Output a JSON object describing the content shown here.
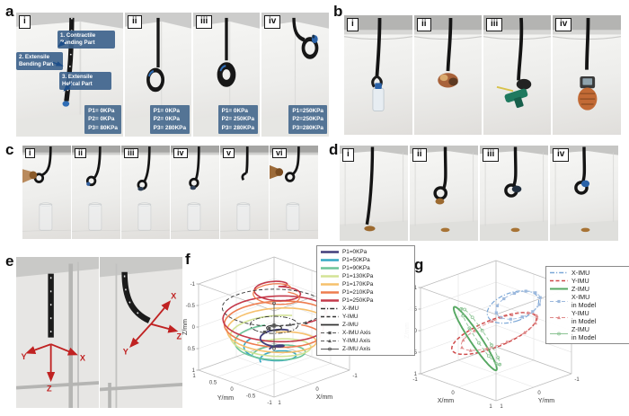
{
  "panels": {
    "a": {
      "letter": "a",
      "items": [
        "i",
        "ii",
        "iii",
        "iv"
      ],
      "callouts": [
        "1. Contractile Bending Part",
        "2. Extensile Bending Part",
        "3. Extensile Helical Part"
      ],
      "pressures": [
        [
          "P1= 0KPa",
          "P2= 0KPa",
          "P3= 80KPa"
        ],
        [
          "P1= 0KPa",
          "P2= 0KPa",
          "P3= 280KPa"
        ],
        [
          "P1= 0KPa",
          "P2= 250KPa",
          "P3= 280KPa"
        ],
        [
          "P1=250KPa",
          "P2=250KPa",
          "P3=280KPa"
        ]
      ]
    },
    "b": {
      "letter": "b",
      "items": [
        "i",
        "ii",
        "iii",
        "iv"
      ]
    },
    "c": {
      "letter": "c",
      "items": [
        "i",
        "ii",
        "iii",
        "iv",
        "v",
        "vi"
      ]
    },
    "d": {
      "letter": "d",
      "items": [
        "i",
        "ii",
        "iii",
        "iv"
      ]
    },
    "e": {
      "letter": "e",
      "left_axes": {
        "y": "Y",
        "x": "X",
        "z": "Z"
      },
      "right_axes": {
        "x": "X",
        "z": "Z",
        "y": "Y"
      }
    },
    "f": {
      "letter": "f"
    },
    "g": {
      "letter": "g"
    }
  },
  "chart_data": [
    {
      "id": "f",
      "type": "line",
      "projection": "3d",
      "axes": {
        "x": {
          "label": "X/mm",
          "ticks": [
            1,
            0,
            -1
          ],
          "range": [
            -1,
            1
          ]
        },
        "y": {
          "label": "Y/mm",
          "ticks": [
            1,
            0.5,
            0,
            -0.5,
            -1
          ],
          "range": [
            -1,
            1
          ]
        },
        "z": {
          "label": "Z/mm",
          "ticks": [
            -1,
            -0.5,
            0,
            0.5,
            1
          ],
          "range": [
            -1,
            1
          ],
          "reversed": true
        }
      },
      "legend": [
        {
          "label": "P1=0KPa",
          "color": "#413d7b",
          "style": "solid",
          "marker": "none",
          "w": 2.4
        },
        {
          "label": "P1=50KPa",
          "color": "#35a8c4",
          "style": "solid",
          "marker": "none",
          "w": 2.4
        },
        {
          "label": "P1=90KPa",
          "color": "#6cc498",
          "style": "solid",
          "marker": "none",
          "w": 2.4
        },
        {
          "label": "P1=130KPa",
          "color": "#d3e396",
          "style": "solid",
          "marker": "none",
          "w": 2.4
        },
        {
          "label": "P1=170KPa",
          "color": "#f6c06c",
          "style": "solid",
          "marker": "none",
          "w": 2.4
        },
        {
          "label": "P1=210KPa",
          "color": "#ee7d4f",
          "style": "solid",
          "marker": "none",
          "w": 2.4
        },
        {
          "label": "P1=250KPa",
          "color": "#c43a4b",
          "style": "solid",
          "marker": "none",
          "w": 2.4
        },
        {
          "label": "X-IMU",
          "color": "#333333",
          "style": "dashdot",
          "marker": "none",
          "w": 1.4
        },
        {
          "label": "Y-IMU",
          "color": "#333333",
          "style": "dash",
          "marker": "none",
          "w": 1.4
        },
        {
          "label": "Z-IMU",
          "color": "#333333",
          "style": "solid",
          "marker": "none",
          "w": 1.8
        },
        {
          "label": "X-IMU Axis",
          "color": "#555555",
          "style": "dash",
          "marker": "square",
          "w": 1
        },
        {
          "label": "Y-IMU Axis",
          "color": "#555555",
          "style": "dash",
          "marker": "triangle",
          "w": 1
        },
        {
          "label": "Z-IMU Axis",
          "color": "#555555",
          "style": "solid",
          "marker": "circle",
          "w": 1
        }
      ],
      "view": {
        "origin": [
          100,
          84
        ],
        "ux": [
          -42,
          15
        ],
        "uy": [
          -42,
          -15
        ],
        "uz": [
          0,
          48
        ],
        "front": [
          1,
          -1
        ],
        "zedge": [
          1,
          1
        ],
        "x_y": -1,
        "y_x": 1,
        "xoff": [
          6,
          8
        ],
        "yoff": [
          -5,
          8
        ],
        "labels": {
          "x": {
            "pos": [
              0,
              -1,
              1
            ],
            "off": [
              14,
              17
            ]
          },
          "y": {
            "pos": [
              1,
              0,
              1
            ],
            "off": [
              -12,
              18
            ]
          },
          "z": {
            "pos": [
              1,
              1,
              0
            ],
            "off": [
              -13,
              0
            ],
            "rot": -90
          }
        }
      },
      "series": [
        {
          "type": "spiral",
          "r0": 0.25,
          "r1": 0.6,
          "z0": 0.8,
          "z1": 0.45,
          "turns": 1.15,
          "phase": 0.6,
          "color": "#35a8c4",
          "w": 1.6
        },
        {
          "type": "spiral",
          "r0": 0.45,
          "r1": 0.8,
          "z0": 0.72,
          "z1": 0.3,
          "turns": 1.15,
          "phase": 1.2,
          "color": "#6cc498",
          "w": 1.6
        },
        {
          "type": "spiral",
          "r0": 0.6,
          "r1": 0.9,
          "z0": 0.6,
          "z1": 0.1,
          "turns": 1.15,
          "phase": 1.8,
          "color": "#d3e396",
          "w": 1.6
        },
        {
          "type": "spiral",
          "r0": 0.75,
          "r1": 0.95,
          "z0": 0.45,
          "z1": -0.1,
          "turns": 1.15,
          "phase": 2.4,
          "color": "#f6c06c",
          "w": 1.6
        },
        {
          "type": "spiral",
          "r0": 0.85,
          "r1": 1.0,
          "z0": 0.25,
          "z1": -0.3,
          "turns": 1.18,
          "phase": 3.0,
          "color": "#ee7d4f",
          "w": 1.6
        },
        {
          "type": "spiral",
          "r0": 0.92,
          "r1": 1.0,
          "z0": 0.05,
          "z1": -0.45,
          "turns": 1.22,
          "phase": 3.5,
          "color": "#c43a4b",
          "w": 1.6
        },
        {
          "type": "spiral",
          "r0": 0.12,
          "r1": 0.32,
          "z0": 0.55,
          "z1": 0.15,
          "turns": 1.3,
          "phase": 1.5,
          "color": "#413d7b",
          "w": 1.8
        },
        {
          "type": "spiral",
          "r0": 0.55,
          "r1": 0.2,
          "z0": -0.7,
          "z1": -1.02,
          "turns": 1.4,
          "phase": 2.5,
          "color": "#c43a4b",
          "w": 1.6
        },
        {
          "type": "spiral",
          "r0": 0.5,
          "r1": 0.3,
          "z0": -0.62,
          "z1": -0.92,
          "turns": 1.2,
          "phase": 2.9,
          "color": "#ee7d4f",
          "w": 1.3
        },
        {
          "type": "spiral",
          "r0": 0.97,
          "r1": 0.97,
          "z0": -0.45,
          "z1": -0.45,
          "turns": 1,
          "phase": 0,
          "color": "#333333",
          "style": "dash",
          "w": 0.9
        },
        {
          "type": "spiral",
          "r0": 0.45,
          "r1": 0.45,
          "z0": -0.05,
          "z1": -0.05,
          "turns": 1,
          "phase": 0,
          "color": "#333333",
          "style": "dashdot",
          "w": 0.9
        },
        {
          "type": "spiral",
          "r0": 0.14,
          "r1": 0.14,
          "z0": 0.02,
          "z1": 0.02,
          "turns": 1,
          "phase": 0,
          "color": "#333333",
          "style": "solid",
          "w": 1.1
        },
        {
          "type": "seg",
          "a": [
            0,
            0,
            -0.05
          ],
          "b": [
            0.55,
            -0.3,
            -0.15
          ],
          "color": "#555555",
          "style": "dash",
          "marker": "square",
          "every": 18,
          "w": 0.8
        },
        {
          "type": "seg",
          "a": [
            0,
            0,
            -0.02
          ],
          "b": [
            -0.5,
            -0.35,
            -0.05
          ],
          "color": "#555555",
          "style": "dash",
          "marker": "triangle",
          "every": 18,
          "w": 0.8
        },
        {
          "type": "seg",
          "a": [
            0,
            0,
            0.5
          ],
          "b": [
            0,
            0,
            -0.55
          ],
          "color": "#555555",
          "style": "solid",
          "marker": "circle",
          "every": 18,
          "w": 0.8
        }
      ]
    },
    {
      "id": "g",
      "type": "line",
      "projection": "3d",
      "axes": {
        "x": {
          "label": "X/mm",
          "ticks": [
            -1,
            0,
            1
          ],
          "range": [
            -1,
            1
          ]
        },
        "y": {
          "label": "Y/mm",
          "ticks": [
            1,
            0,
            -1
          ],
          "range": [
            -1,
            1
          ]
        },
        "z": {
          "label": "Z/mm",
          "ticks": [
            -1,
            -0.5,
            0,
            0.5,
            1
          ],
          "range": [
            -1,
            1
          ],
          "reversed": true
        }
      },
      "legend": [
        {
          "label": "X-IMU",
          "color": "#7ba7d7",
          "style": "dashdot",
          "marker": "none",
          "w": 1.4
        },
        {
          "label": "Y-IMU",
          "color": "#cf4a4a",
          "style": "dash",
          "marker": "none",
          "w": 1.6
        },
        {
          "label": "Z-IMU",
          "color": "#57a863",
          "style": "solid",
          "marker": "none",
          "w": 2
        },
        {
          "label": "X-IMU\nin Model",
          "color": "#9db9dd",
          "style": "dash",
          "marker": "square",
          "w": 1
        },
        {
          "label": "Y-IMU\nin Model",
          "color": "#df8a8a",
          "style": "dash",
          "marker": "triangle",
          "w": 1
        },
        {
          "label": "Z-IMU\nin Model",
          "color": "#8cc494",
          "style": "solid",
          "marker": "circle",
          "w": 1
        }
      ],
      "view": {
        "origin": [
          97,
          88
        ],
        "ux": [
          42,
          15
        ],
        "uy": [
          -42,
          15
        ],
        "uz": [
          0,
          48
        ],
        "front": [
          1,
          1
        ],
        "zedge": [
          -1,
          1
        ],
        "x_y": 1,
        "y_x": 1,
        "xoff": [
          -6,
          8
        ],
        "yoff": [
          6,
          8
        ],
        "labels": {
          "x": {
            "pos": [
              0,
              1,
              1
            ],
            "off": [
              -14,
              17
            ]
          },
          "y": {
            "pos": [
              1,
              0,
              1
            ],
            "off": [
              14,
              17
            ]
          },
          "z": {
            "pos": [
              -1,
              1,
              0
            ],
            "off": [
              -13,
              0
            ],
            "rot": -90
          }
        }
      },
      "series": [
        {
          "type": "loop",
          "c": [
            0.15,
            -0.3,
            -0.5
          ],
          "u": [
            0.75,
            0.55,
            0.12
          ],
          "v": [
            -0.5,
            0.62,
            0.3
          ],
          "r": 0.6,
          "color": "#7ba7d7",
          "style": "dashdot",
          "w": 1.2
        },
        {
          "type": "loop",
          "c": [
            0.0,
            0.05,
            0.05
          ],
          "u": [
            0.95,
            0.05,
            -0.28
          ],
          "v": [
            -0.1,
            0.93,
            0.33
          ],
          "r": 0.82,
          "color": "#cf4a4a",
          "style": "dash",
          "w": 1.5
        },
        {
          "type": "loop",
          "c": [
            -0.3,
            0.25,
            0.2
          ],
          "u": [
            0.3,
            0.72,
            -0.6
          ],
          "v": [
            0.7,
            0.1,
            0.65
          ],
          "r": 0.78,
          "color": "#57a863",
          "style": "solid",
          "w": 1.9
        },
        {
          "type": "loop",
          "c": [
            0.23,
            -0.36,
            -0.55
          ],
          "u": [
            0.75,
            0.55,
            0.12
          ],
          "v": [
            -0.5,
            0.62,
            0.3
          ],
          "r": 0.52,
          "color": "#9db9dd",
          "style": "dash",
          "marker": "square",
          "every": 10,
          "w": 0.9
        },
        {
          "type": "loop",
          "c": [
            0.08,
            -0.01,
            0.0
          ],
          "u": [
            0.95,
            0.05,
            -0.28
          ],
          "v": [
            -0.1,
            0.93,
            0.33
          ],
          "r": 0.74,
          "color": "#df8a8a",
          "style": "dash",
          "marker": "triangle",
          "every": 10,
          "w": 0.9
        },
        {
          "type": "loop",
          "c": [
            -0.22,
            0.19,
            0.15
          ],
          "u": [
            0.3,
            0.72,
            -0.6
          ],
          "v": [
            0.7,
            0.1,
            0.65
          ],
          "r": 0.7,
          "color": "#8cc494",
          "style": "dash",
          "marker": "circle",
          "every": 10,
          "w": 0.9
        }
      ]
    }
  ]
}
